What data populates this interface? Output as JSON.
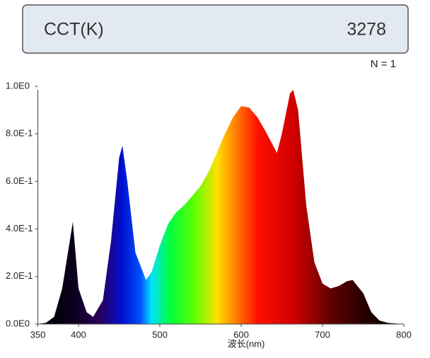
{
  "header": {
    "label": "CCT(K)",
    "value": 3278
  },
  "sample_count": "N = 1",
  "chart_data": {
    "type": "area",
    "x_label": "波长(nm)",
    "x": [
      350,
      360,
      370,
      380,
      393,
      400,
      410,
      418,
      430,
      440,
      450,
      454,
      460,
      470,
      483,
      490,
      500,
      510,
      520,
      530,
      540,
      550,
      560,
      570,
      580,
      590,
      600,
      610,
      620,
      630,
      644,
      650,
      660,
      664,
      670,
      680,
      690,
      700,
      710,
      720,
      730,
      737,
      750,
      760,
      770,
      780,
      790,
      800
    ],
    "series": [
      {
        "values": [
          0,
          0.005,
          0.03,
          0.15,
          0.43,
          0.15,
          0.05,
          0.03,
          0.1,
          0.35,
          0.7,
          0.75,
          0.6,
          0.3,
          0.185,
          0.22,
          0.33,
          0.42,
          0.47,
          0.5,
          0.54,
          0.58,
          0.64,
          0.72,
          0.8,
          0.87,
          0.917,
          0.91,
          0.87,
          0.81,
          0.72,
          0.8,
          0.97,
          0.985,
          0.9,
          0.5,
          0.26,
          0.17,
          0.15,
          0.16,
          0.18,
          0.185,
          0.13,
          0.05,
          0.015,
          0.005,
          0.002,
          0
        ]
      }
    ],
    "xlim": [
      350,
      800
    ],
    "xticks": [
      350,
      400,
      500,
      600,
      700,
      800
    ],
    "ylim": [
      0,
      1
    ],
    "yticks": [
      {
        "value": 0,
        "label": "0.0E0"
      },
      {
        "value": 0.2,
        "label": "2.0E-1"
      },
      {
        "value": 0.4,
        "label": "4.0E-1"
      },
      {
        "value": 0.6,
        "label": "6.0E-1"
      },
      {
        "value": 0.8,
        "label": "8.0E-1"
      },
      {
        "value": 1,
        "label": "1.0E0"
      }
    ]
  }
}
